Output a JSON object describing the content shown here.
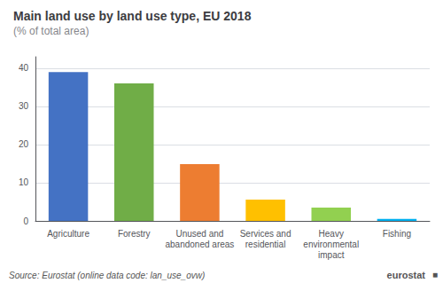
{
  "chart_data": {
    "type": "bar",
    "title": "Main land use by land use type, EU 2018",
    "subtitle": "(% of total area)",
    "categories": [
      "Agriculture",
      "Forestry",
      "Unused and\nabandoned areas",
      "Services and\nresidential",
      "Heavy\nenvironmental\nimpact",
      "Fishing"
    ],
    "values": [
      39.0,
      36.0,
      14.9,
      5.6,
      3.5,
      0.5
    ],
    "colors": [
      "#4472C4",
      "#70AD47",
      "#ED7D31",
      "#FFC000",
      "#92D050",
      "#00B0F0"
    ],
    "ylim": [
      0,
      43
    ],
    "yticks": [
      0,
      10,
      20,
      30,
      40
    ],
    "grid": true,
    "annotations": [
      "Source: Eurostat (online data code: lan_use_ovw)",
      "eurostat",
      "■"
    ]
  }
}
